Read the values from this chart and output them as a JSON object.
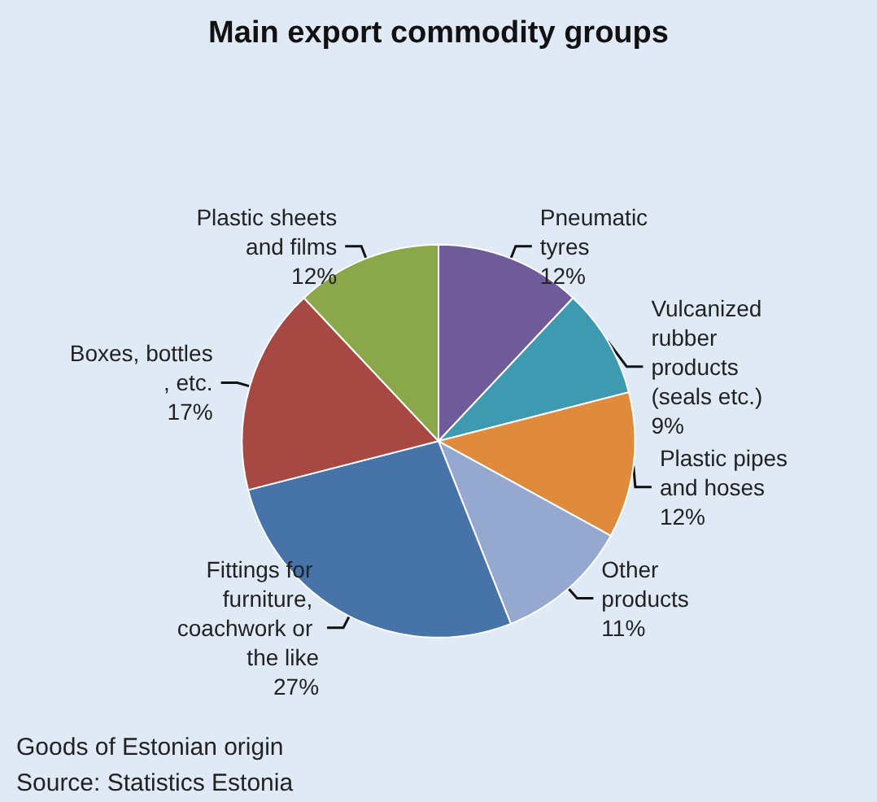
{
  "chart_data": {
    "type": "pie",
    "title": "Main export commodity groups",
    "categories": [
      "Pneumatic tyres",
      "Vulcanized rubber products (seals etc.)",
      "Plastic pipes and hoses",
      "Other products",
      "Fittings for furniture, coachwork or the like",
      "Boxes, bottles, etc.",
      "Plastic sheets and films"
    ],
    "values": [
      12,
      9,
      12,
      11,
      27,
      17,
      12
    ],
    "value_labels": [
      "12%",
      "9%",
      "12%",
      "11%",
      "27%",
      "17%",
      "12%"
    ],
    "colors": [
      "#6f5a9a",
      "#3e9ab0",
      "#e08a3c",
      "#94a8d0",
      "#4673a8",
      "#a84843",
      "#8aa84a"
    ],
    "legend": false,
    "annotations": [
      "Goods of Estonian origin",
      "Source: Statistics Estonia"
    ]
  }
}
